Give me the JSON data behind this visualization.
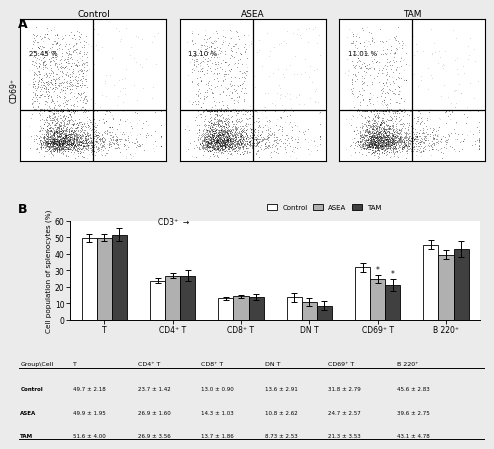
{
  "panel_A_label": "A",
  "panel_B_label": "B",
  "flow_panels": [
    {
      "title": "Control",
      "percentage": "25.45 %"
    },
    {
      "title": "ASEA",
      "percentage": "13.10 %"
    },
    {
      "title": "TAM",
      "percentage": "11.01 %"
    }
  ],
  "categories": [
    "T",
    "CD4⁺ T",
    "CD8⁺ T",
    "DN T",
    "CD69⁺ T",
    "B 220⁺"
  ],
  "groups": [
    "Control",
    "ASEA",
    "TAM"
  ],
  "values": {
    "Control": [
      49.7,
      23.7,
      13.0,
      13.6,
      31.8,
      45.6
    ],
    "ASEA": [
      49.9,
      26.9,
      14.3,
      10.8,
      24.7,
      39.6
    ],
    "TAM": [
      51.6,
      26.9,
      13.7,
      8.73,
      21.3,
      43.1
    ]
  },
  "errors": {
    "Control": [
      2.18,
      1.42,
      0.9,
      2.91,
      2.79,
      2.83
    ],
    "ASEA": [
      1.95,
      1.6,
      1.03,
      2.62,
      2.57,
      2.75
    ],
    "TAM": [
      4.0,
      3.56,
      1.86,
      2.53,
      3.53,
      4.78
    ]
  },
  "bar_colors": {
    "Control": "#ffffff",
    "ASEA": "#b0b0b0",
    "TAM": "#404040"
  },
  "bar_edge_color": "#000000",
  "ylabel": "Cell population of splenocytes (%)",
  "ylim": [
    0,
    60
  ],
  "yticks": [
    0,
    10,
    20,
    30,
    40,
    50,
    60
  ],
  "table_rows": [
    [
      "Group\\Cell",
      "T",
      "CD4⁺ T",
      "CD8⁺ T",
      "DN T",
      "CD69⁺ T",
      "B 220⁺"
    ],
    [
      "Control",
      "49.7 ± 2.18",
      "23.7 ± 1.42",
      "13.0 ± 0.90",
      "13.6 ± 2.91",
      "31.8 ± 2.79",
      "45.6 ± 2.83"
    ],
    [
      "ASEA",
      "49.9 ± 1.95",
      "26.9 ± 1.60",
      "14.3 ± 1.03",
      "10.8 ± 2.62",
      "24.7 ± 2.57",
      "39.6 ± 2.75"
    ],
    [
      "TAM",
      "51.6 ± 4.00",
      "26.9 ± 3.56",
      "13.7 ± 1.86",
      "8.73 ± 2.53",
      "21.3 ± 3.53",
      "43.1 ± 4.78"
    ]
  ],
  "significance_markers": {
    "CD69⁺ T": [
      "ASEA",
      "TAM"
    ]
  },
  "xaxis_label_CD3": "CD3⁺",
  "yaxis_label_CD69": "CD69⁺",
  "background_color": "#ffffff",
  "figure_bg": "#ebebeb"
}
